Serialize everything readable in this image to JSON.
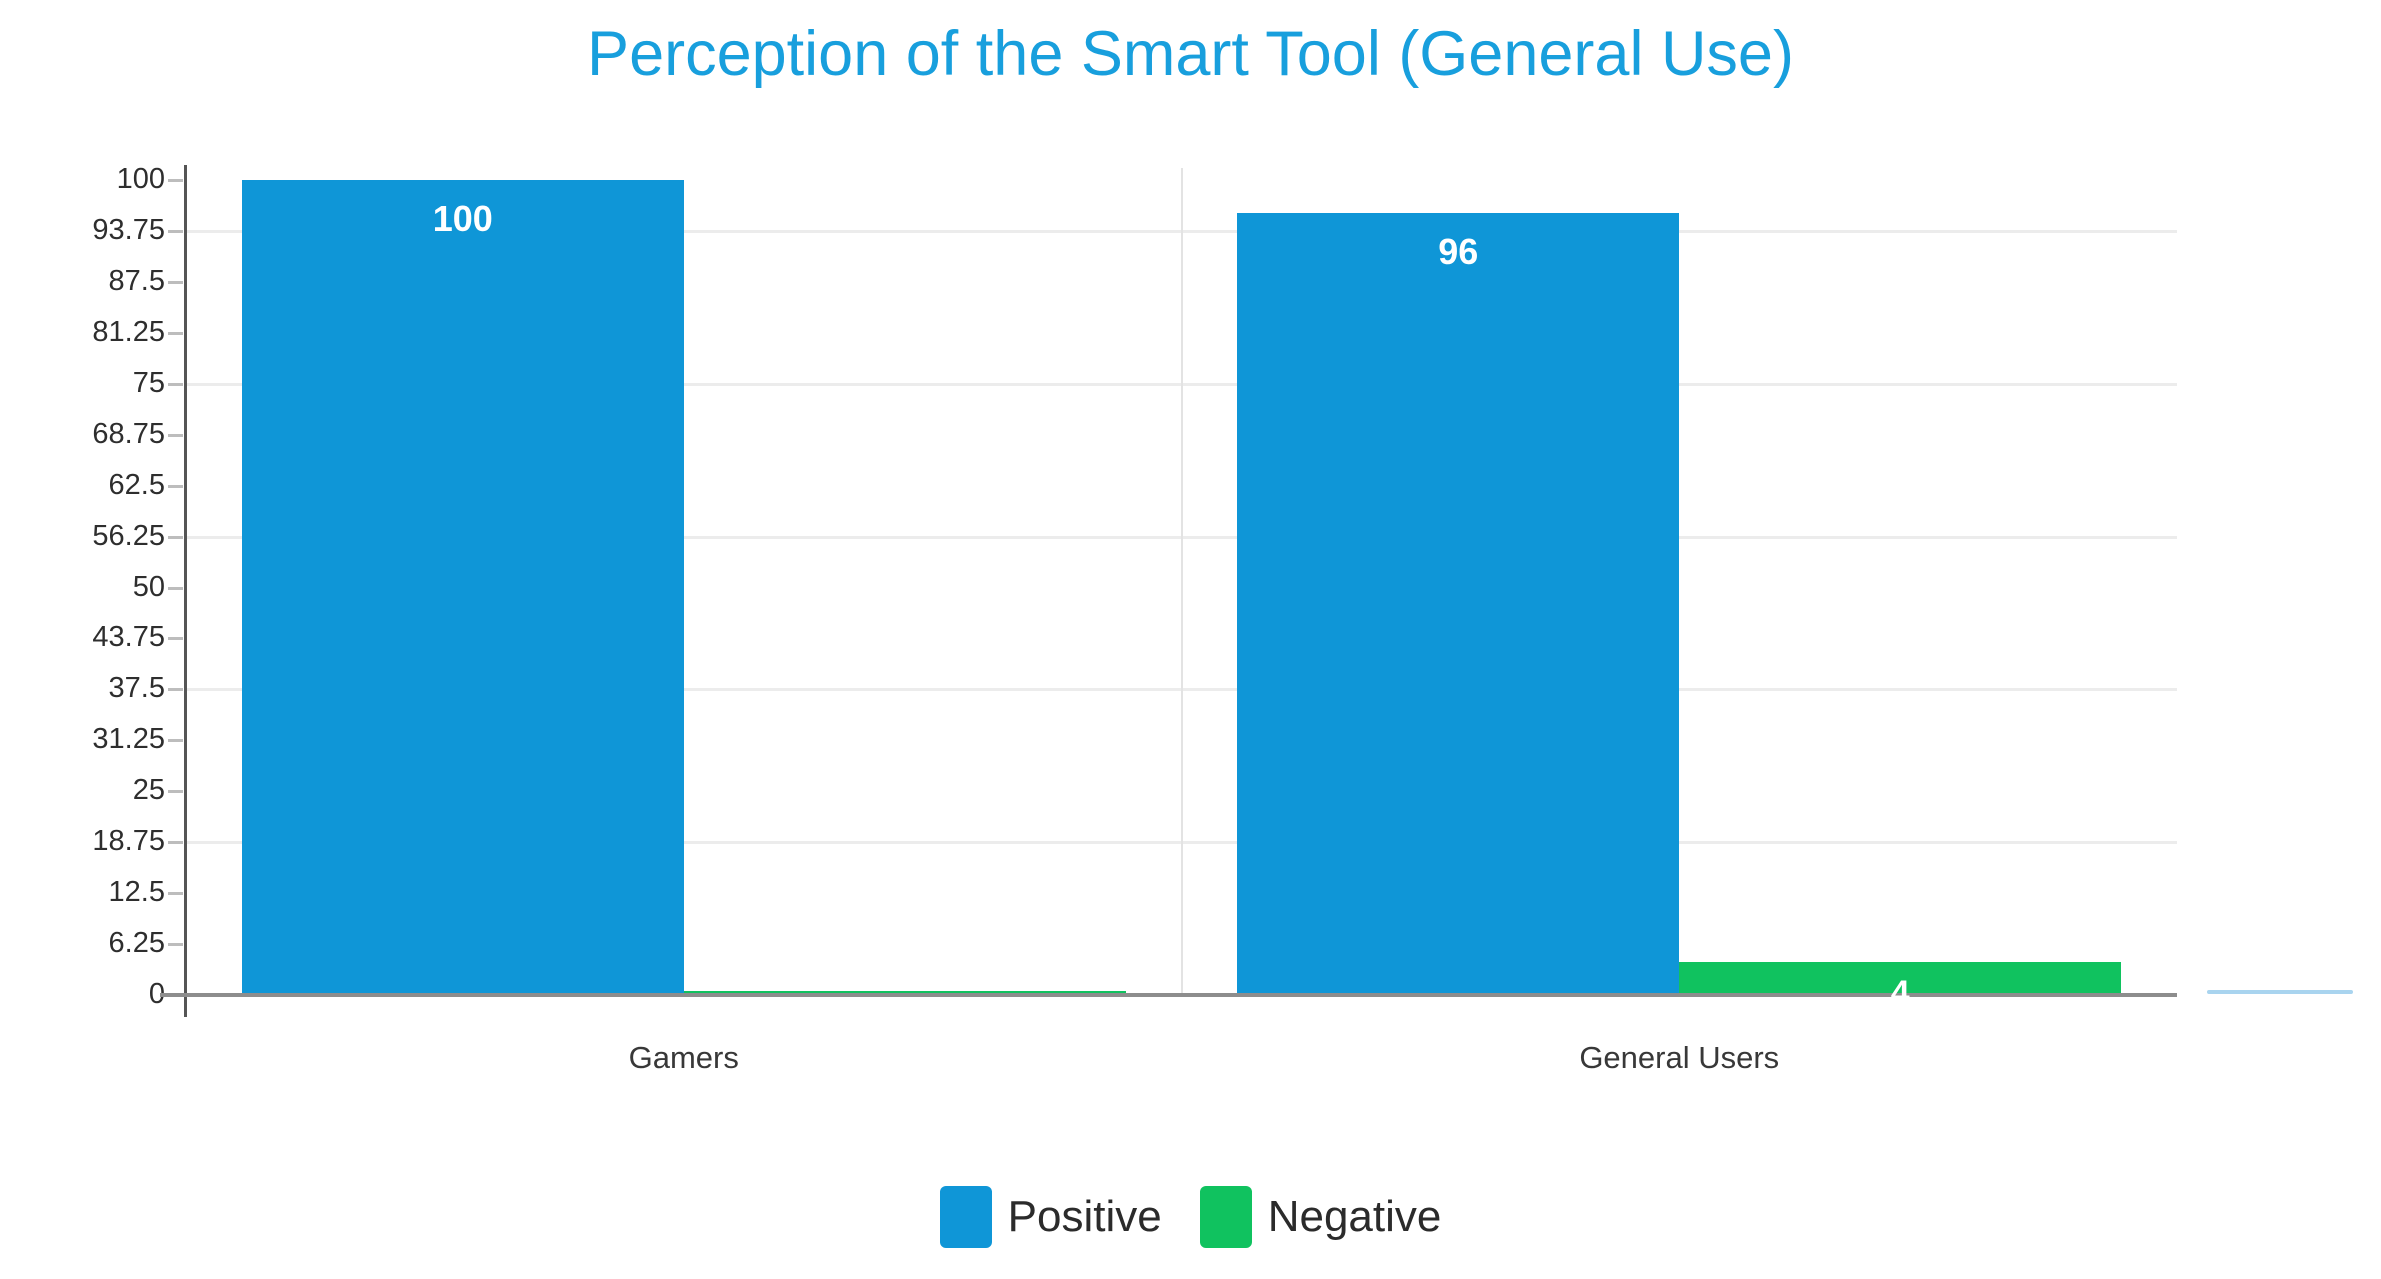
{
  "chart_data": {
    "type": "bar",
    "title": "Perception of the Smart Tool (General Use)",
    "categories": [
      "Gamers",
      "General Users"
    ],
    "series": [
      {
        "name": "Positive",
        "color": "#0f96d7",
        "values": [
          100,
          96
        ],
        "data_labels": [
          "100",
          "96"
        ]
      },
      {
        "name": "Negative",
        "color": "#10c25f",
        "values": [
          0.3,
          4
        ],
        "data_labels": [
          "",
          "4"
        ]
      }
    ],
    "ylim": [
      0,
      100
    ],
    "yticks": [
      {
        "value": 0,
        "label": "0"
      },
      {
        "value": 6.25,
        "label": "6.25"
      },
      {
        "value": 12.5,
        "label": "12.5"
      },
      {
        "value": 18.75,
        "label": "18.75"
      },
      {
        "value": 25,
        "label": "25"
      },
      {
        "value": 31.25,
        "label": "31.25"
      },
      {
        "value": 37.5,
        "label": "37.5"
      },
      {
        "value": 43.75,
        "label": "43.75"
      },
      {
        "value": 50,
        "label": "50"
      },
      {
        "value": 56.25,
        "label": "56.25"
      },
      {
        "value": 62.5,
        "label": "62.5"
      },
      {
        "value": 68.75,
        "label": "68.75"
      },
      {
        "value": 75,
        "label": "75"
      },
      {
        "value": 81.25,
        "label": "81.25"
      },
      {
        "value": 87.5,
        "label": "87.5"
      },
      {
        "value": 93.75,
        "label": "93.75"
      },
      {
        "value": 100,
        "label": "100"
      }
    ],
    "gridline_values": [
      18.75,
      37.5,
      56.25,
      75,
      93.75
    ],
    "grid": "horizontal",
    "legend_position": "bottom",
    "xlabel": "",
    "ylabel": "",
    "data_label_color": "#ffffff"
  },
  "colors": {
    "title": "#189fdd",
    "axis_line": "#555555",
    "baseline": "#8d8d8d",
    "tick_text": "#2e2e2e",
    "tick_dash": "#bdbdbd",
    "gridline": "#ececec",
    "separator": "#e3e3e3",
    "category_text": "#383838",
    "legend_text": "#2b2b2b",
    "background": "#ffffff",
    "right_edge_segment": "#a9d4ef"
  }
}
